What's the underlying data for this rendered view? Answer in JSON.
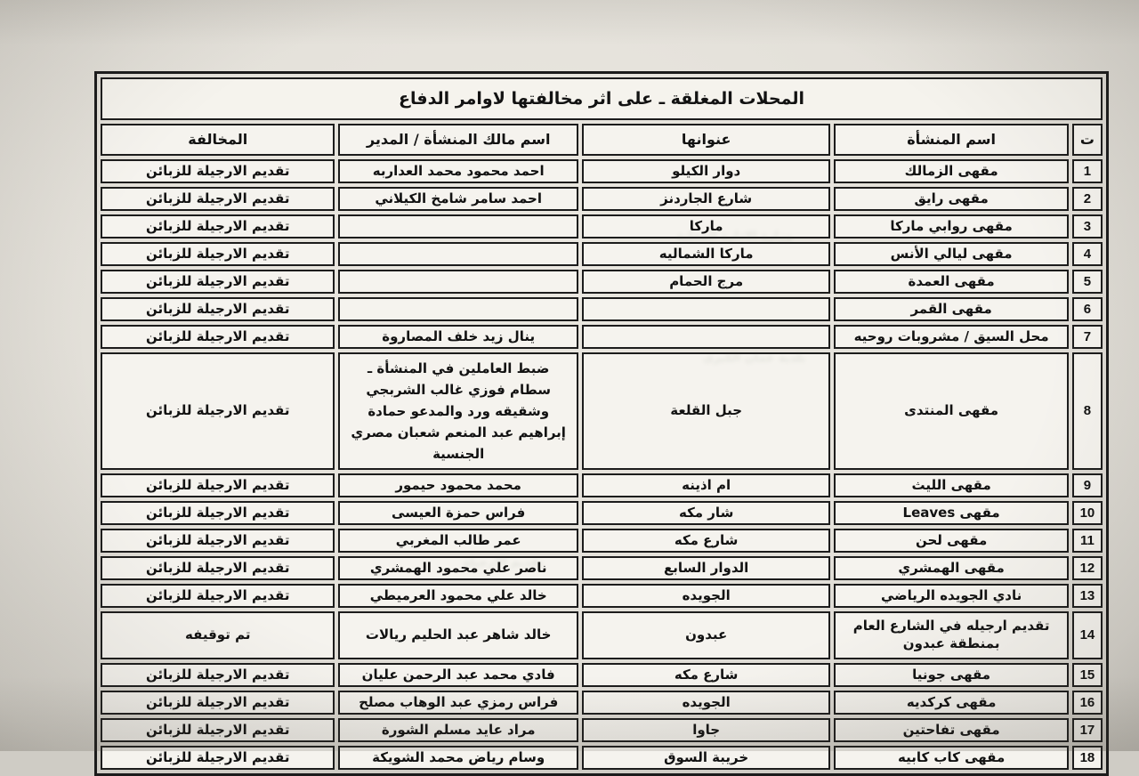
{
  "page": {
    "title": "المحلات المغلقة ـ على اثر مخالفتها لاوامر الدفاع"
  },
  "table": {
    "columns": {
      "index": "ت",
      "name": "اسم المنشأة",
      "address": "عنوانها",
      "owner": "اسم مالك المنشأة / المدير",
      "violation": "المخالفة"
    },
    "rows": [
      {
        "index": "1",
        "name": "مقهى الزمالك",
        "address": "دوار الكيلو",
        "owner": "احمد محمود محمد العداربه",
        "violation": "تقديم الارجيلة للزبائن"
      },
      {
        "index": "2",
        "name": "مقهى رايق",
        "address": "شارع الجاردنز",
        "owner": "احمد سامر شامخ الكيلاني",
        "violation": "تقديم الارجيلة للزبائن"
      },
      {
        "index": "3",
        "name": "مقهى روابي ماركا",
        "address": "ماركا",
        "owner": "",
        "violation": "تقديم الارجيلة للزبائن"
      },
      {
        "index": "4",
        "name": "مقهى ليالي الأنس",
        "address": "ماركا الشماليه",
        "owner": "",
        "violation": "تقديم الارجيلة للزبائن"
      },
      {
        "index": "5",
        "name": "مقهى العمدة",
        "address": "مرج الحمام",
        "owner": "",
        "violation": "تقديم الارجيلة للزبائن"
      },
      {
        "index": "6",
        "name": "مقهى القمر",
        "address": "",
        "owner": "",
        "violation": "تقديم الارجيلة للزبائن"
      },
      {
        "index": "7",
        "name": "محل السيق / مشروبات روحيه",
        "address": "",
        "owner": "ينال زيد خلف المصاروة",
        "violation": "تقديم الارجيلة للزبائن"
      },
      {
        "index": "8",
        "name": "مقهى المنتدى",
        "address": "جبل القلعة",
        "owner": "ضبط العاملين في المنشأة ـ سطام فوزي غالب الشربجي وشقيقه ورد والمدعو حمادة إبراهيم عبد المنعم شعبان مصري الجنسية",
        "violation": "تقديم الارجيلة للزبائن"
      },
      {
        "index": "9",
        "name": "مقهى الليث",
        "address": "ام اذينه",
        "owner": "محمد محمود حيمور",
        "violation": "تقديم الارجيلة للزبائن"
      },
      {
        "index": "10",
        "name": "مقهى Leaves",
        "address": "شار مكه",
        "owner": "فراس حمزة العيسى",
        "violation": "تقديم الارجيلة للزبائن"
      },
      {
        "index": "11",
        "name": "مقهى لحن",
        "address": "شارع مكه",
        "owner": "عمر طالب المغربي",
        "violation": "تقديم الارجيلة للزبائن"
      },
      {
        "index": "12",
        "name": "مقهى الهمشري",
        "address": "الدوار السابع",
        "owner": "ناصر علي محمود الهمشري",
        "violation": "تقديم الارجيلة للزبائن"
      },
      {
        "index": "13",
        "name": "نادي الجويده الرياضي",
        "address": "الجويده",
        "owner": "خالد علي محمود العرميطي",
        "violation": "تقديم الارجيلة للزبائن"
      },
      {
        "index": "14",
        "name": "تقديم ارجيله في الشارع العام بمنطقة عبدون",
        "address": "عبدون",
        "owner": "خالد شاهر عبد الحليم ريالات",
        "violation": "تم توقيفه"
      },
      {
        "index": "15",
        "name": "مقهى جونيا",
        "address": "شارع مكه",
        "owner": "فادي محمد عبد الرحمن عليان",
        "violation": "تقديم الارجيلة للزبائن"
      },
      {
        "index": "16",
        "name": "مقهى كركديه",
        "address": "الجويده",
        "owner": "فراس رمزي عبد الوهاب مصلح",
        "violation": "تقديم الارجيلة للزبائن"
      },
      {
        "index": "17",
        "name": "مقهى تفاحتين",
        "address": "جاوا",
        "owner": "مراد عايد مسلم الشورة",
        "violation": "تقديم الارجيلة للزبائن"
      },
      {
        "index": "18",
        "name": "مقهى كاب كابيه",
        "address": "خريبة السوق",
        "owner": "وسام رياض محمد الشويكة",
        "violation": "تقديم الارجيلة للزبائن"
      }
    ]
  }
}
